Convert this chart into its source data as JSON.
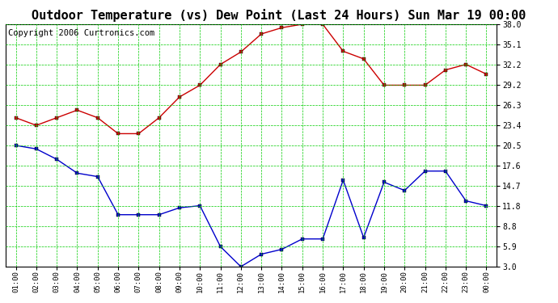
{
  "title": "Outdoor Temperature (vs) Dew Point (Last 24 Hours) Sun Mar 19 00:00",
  "copyright": "Copyright 2006 Curtronics.com",
  "x_labels": [
    "01:00",
    "02:00",
    "03:00",
    "04:00",
    "05:00",
    "06:00",
    "07:00",
    "08:00",
    "09:00",
    "10:00",
    "11:00",
    "12:00",
    "13:00",
    "14:00",
    "15:00",
    "16:00",
    "17:00",
    "18:00",
    "19:00",
    "20:00",
    "21:00",
    "22:00",
    "23:00",
    "00:00"
  ],
  "red_temp": [
    24.5,
    23.4,
    24.5,
    25.6,
    24.5,
    22.2,
    22.2,
    24.5,
    27.5,
    29.2,
    32.2,
    34.0,
    36.6,
    37.5,
    38.0,
    38.0,
    34.1,
    33.0,
    29.2,
    29.2,
    29.2,
    31.4,
    32.2,
    30.8
  ],
  "blue_dew": [
    20.5,
    20.0,
    18.5,
    16.5,
    16.0,
    10.5,
    10.5,
    10.5,
    11.5,
    11.8,
    5.9,
    3.0,
    4.8,
    5.5,
    7.0,
    7.0,
    15.5,
    7.2,
    15.2,
    14.0,
    16.8,
    16.8,
    12.5,
    11.8
  ],
  "y_ticks": [
    3.0,
    5.9,
    8.8,
    11.8,
    14.7,
    17.6,
    20.5,
    23.4,
    26.3,
    29.2,
    32.2,
    35.1,
    38.0
  ],
  "ylim": [
    3.0,
    38.0
  ],
  "bg_color": "#ffffff",
  "plot_bg_color": "#ffffff",
  "grid_color": "#00cc00",
  "red_color": "#cc0000",
  "blue_color": "#0000cc",
  "title_fontsize": 11,
  "copyright_fontsize": 7.5
}
